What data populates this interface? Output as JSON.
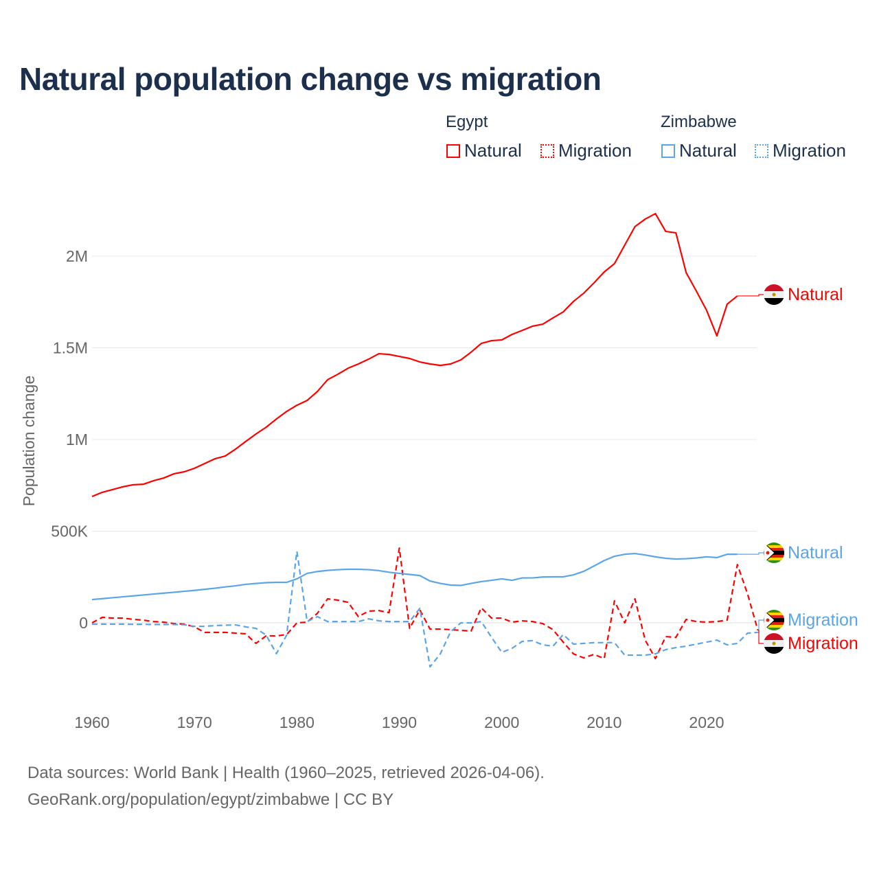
{
  "chart_data": {
    "type": "line",
    "title": "Natural population change vs migration",
    "ylabel": "Population change",
    "xlabel": "",
    "xlim": [
      1960,
      2025
    ],
    "ylim": [
      -400000,
      2300000
    ],
    "x_ticks": [
      1960,
      1970,
      1980,
      1990,
      2000,
      2010,
      2020
    ],
    "x_tick_labels": [
      "1960",
      "1970",
      "1980",
      "1990",
      "2000",
      "2010",
      "2020"
    ],
    "y_ticks": [
      0,
      500000,
      1000000,
      1500000,
      2000000
    ],
    "y_tick_labels": [
      "0",
      "500K",
      "1M",
      "1.5M",
      "2M"
    ],
    "grid": true,
    "legend": {
      "groups": [
        {
          "title": "Egypt",
          "items": [
            "Natural",
            "Migration"
          ]
        },
        {
          "title": "Zimbabwe",
          "items": [
            "Natural",
            "Migration"
          ]
        }
      ],
      "placement": "top-right"
    },
    "series": [
      {
        "name": "Egypt Natural",
        "country": "Egypt",
        "kind": "Natural",
        "color": "#ff0000",
        "dash": false,
        "start": 1960,
        "values": [
          689,
          712,
          727,
          742,
          753,
          756,
          775,
          790,
          813,
          824,
          843,
          869,
          895,
          910,
          947,
          989,
          1030,
          1067,
          1112,
          1153,
          1187,
          1213,
          1262,
          1326,
          1356,
          1389,
          1412,
          1438,
          1468,
          1464,
          1453,
          1442,
          1423,
          1412,
          1404,
          1412,
          1434,
          1476,
          1524,
          1539,
          1543,
          1573,
          1595,
          1618,
          1629,
          1663,
          1696,
          1753,
          1798,
          1854,
          1914,
          1959,
          2060,
          2161,
          2202,
          2232,
          2135,
          2127,
          1910,
          1809,
          1704,
          1565,
          1738,
          1783
        ],
        "unit": "thousands"
      },
      {
        "name": "Egypt Migration",
        "country": "Egypt",
        "kind": "Migration",
        "color": "#ff0000",
        "dash": true,
        "start": 1960,
        "values": [
          0,
          30,
          26,
          26,
          19,
          15,
          7,
          4,
          -4,
          -7,
          -22,
          -52,
          -52,
          -52,
          -56,
          -60,
          -112,
          -71,
          -71,
          -64,
          0,
          4,
          52,
          131,
          124,
          112,
          34,
          64,
          67,
          56,
          408,
          -30,
          71,
          -34,
          -34,
          -37,
          -41,
          -45,
          82,
          26,
          26,
          4,
          11,
          7,
          -4,
          -37,
          -105,
          -169,
          -191,
          -172,
          -195,
          120,
          0,
          131,
          -94,
          -195,
          -75,
          -79,
          19,
          7,
          4,
          7,
          15,
          318,
          157,
          -41
        ],
        "unit": "thousands"
      },
      {
        "name": "Zimbabwe Natural",
        "country": "Zimbabwe",
        "kind": "Natural",
        "color": "#5ba4e8",
        "dash": false,
        "start": 1960,
        "values": [
          127,
          132,
          137,
          142,
          147,
          152,
          157,
          162,
          167,
          172,
          177,
          183,
          189,
          196,
          202,
          210,
          215,
          219,
          221,
          221,
          240,
          270,
          280,
          286,
          290,
          292,
          292,
          290,
          285,
          276,
          270,
          264,
          258,
          228,
          215,
          206,
          204,
          215,
          225,
          232,
          240,
          232,
          245,
          245,
          250,
          251,
          251,
          262,
          281,
          310,
          340,
          363,
          374,
          378,
          370,
          360,
          352,
          348,
          350,
          354,
          360,
          356,
          374,
          374
        ],
        "unit": "thousands"
      },
      {
        "name": "Zimbabwe Migration",
        "country": "Zimbabwe",
        "kind": "Migration",
        "color": "#5ba4e8",
        "dash": true,
        "start": 1960,
        "values": [
          -7,
          -7,
          -7,
          -7,
          -8,
          -8,
          -9,
          -9,
          -9,
          -10,
          -19,
          -19,
          -15,
          -13,
          -11,
          -22,
          -30,
          -67,
          -168,
          -67,
          390,
          7,
          34,
          7,
          7,
          7,
          7,
          22,
          11,
          7,
          7,
          7,
          79,
          -240,
          -169,
          -49,
          0,
          0,
          7,
          -79,
          -161,
          -139,
          -101,
          -97,
          -120,
          -127,
          -64,
          -116,
          -112,
          -108,
          -108,
          -108,
          -176,
          -176,
          -176,
          -169,
          -146,
          -135,
          -127,
          -116,
          -105,
          -94,
          -120,
          -112,
          -56,
          -52
        ],
        "unit": "thousands"
      }
    ],
    "end_labels": [
      {
        "text": "Natural",
        "series": "Egypt Natural",
        "flag": "egypt"
      },
      {
        "text": "Natural",
        "series": "Zimbabwe Natural",
        "flag": "zimbabwe"
      },
      {
        "text": "Migration",
        "series": "Zimbabwe Migration",
        "flag": "zimbabwe"
      },
      {
        "text": "Migration",
        "series": "Egypt Migration",
        "flag": "egypt"
      }
    ]
  },
  "legend": {
    "egypt": "Egypt",
    "zimbabwe": "Zimbabwe",
    "natural": "Natural",
    "migration": "Migration"
  },
  "footer": {
    "line1": "Data sources: World Bank | Health (1960–2025, retrieved 2026-04-06).",
    "line2": "GeoRank.org/population/egypt/zimbabwe | CC BY"
  }
}
